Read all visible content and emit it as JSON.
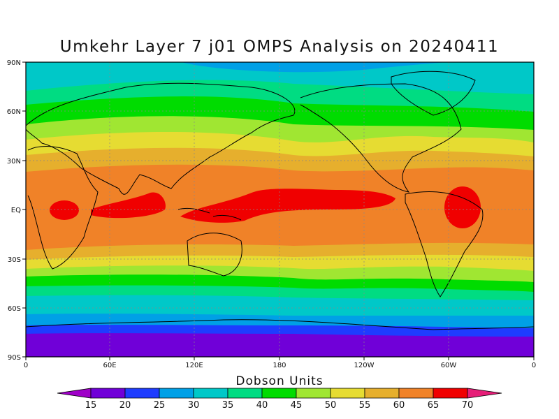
{
  "title": "Umkehr Layer 7 j01 OMPS Analysis on 20240411",
  "colorbar": {
    "title": "Dobson Units",
    "levels": [
      "15",
      "20",
      "25",
      "30",
      "35",
      "40",
      "45",
      "50",
      "55",
      "60",
      "65",
      "70"
    ],
    "colors": [
      "#9f00c8",
      "#7000d8",
      "#1e3cff",
      "#00a0e6",
      "#00c8c8",
      "#00dc82",
      "#00dc00",
      "#a0e632",
      "#e6dc32",
      "#e6af2d",
      "#f08228",
      "#f00000",
      "#e61e78"
    ]
  },
  "axes": {
    "x_ticks": [
      "0",
      "60E",
      "120E",
      "180",
      "120W",
      "60W",
      "0"
    ],
    "y_ticks": [
      "90N",
      "60N",
      "30N",
      "EQ",
      "30S",
      "60S",
      "90S"
    ]
  },
  "chart_data": {
    "type": "heatmap",
    "title": "Umkehr Layer 7 j01 OMPS Analysis on 20240411",
    "units": "Dobson Units",
    "x_range": [
      "0",
      "0"
    ],
    "y_range": [
      "90S",
      "90N"
    ],
    "grid": true,
    "zonal_bands": [
      {
        "band": "90N-80N",
        "value": "30-35"
      },
      {
        "band": "80N-70N",
        "value": "35-40"
      },
      {
        "band": "70N-55N",
        "value": "40-45"
      },
      {
        "band": "55N-45N",
        "value": "45-50"
      },
      {
        "band": "45N-35N",
        "value": "50-55"
      },
      {
        "band": "35N-25N",
        "value": "55-60"
      },
      {
        "band": "25N-20S",
        "value": "60-65"
      },
      {
        "band": "20S-30S",
        "value": "55-60"
      },
      {
        "band": "30S-40S",
        "value": "50-55"
      },
      {
        "band": "40S-45S",
        "value": "45-50"
      },
      {
        "band": "45S-55S",
        "value": "40-45"
      },
      {
        "band": "55S-65S",
        "value": "35-40"
      },
      {
        "band": "65S-70S",
        "value": "30-35"
      },
      {
        "band": "70S-75S",
        "value": "25-30"
      },
      {
        "band": "75S-90S",
        "value": "15-20"
      }
    ],
    "max_regions": [
      {
        "region": "Central Africa",
        "value": ">65"
      },
      {
        "region": "Indian Ocean / Indonesia",
        "value": ">65"
      },
      {
        "region": "Central Pacific",
        "value": ">65"
      },
      {
        "region": "Northern South America",
        "value": ">65"
      }
    ]
  }
}
